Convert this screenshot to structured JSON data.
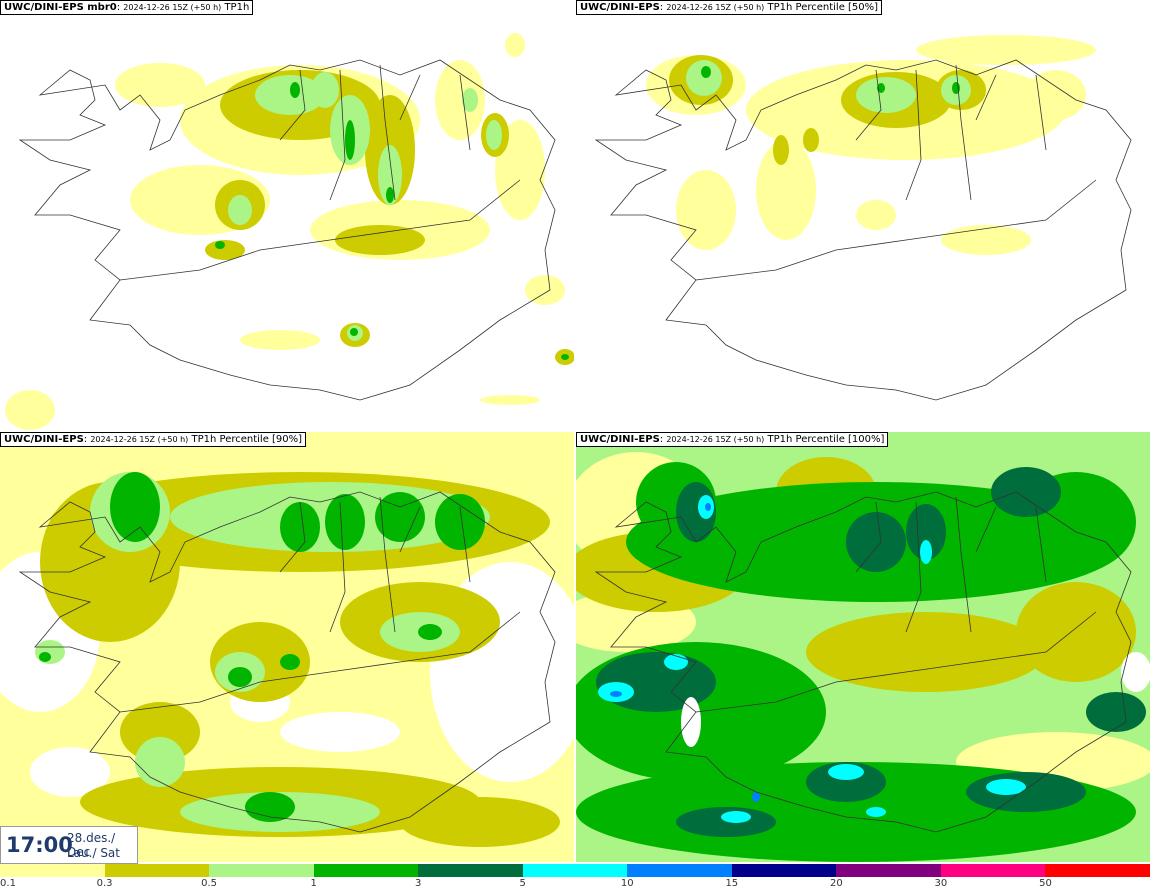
{
  "panels": [
    {
      "model": "UWC/DINI-EPS mbr0",
      "meta": "2024-12-26 15Z (+50 h)",
      "field": "TP1h"
    },
    {
      "model": "UWC/DINI-EPS",
      "meta": "2024-12-26 15Z (+50 h)",
      "field": "TP1h Percentile [50%]"
    },
    {
      "model": "UWC/DINI-EPS",
      "meta": "2024-12-26 15Z (+50 h)",
      "field": "TP1h Percentile [90%]"
    },
    {
      "model": "UWC/DINI-EPS",
      "meta": "2024-12-26 15Z (+50 h)",
      "field": "TP1h Percentile [100%]"
    }
  ],
  "valid_time": {
    "time": "17:00",
    "date": "28.des./ Dec",
    "day": "Lau./ Sat"
  },
  "legend": {
    "ticks": [
      "0.1",
      "0.3",
      "0.5",
      "1",
      "3",
      "5",
      "10",
      "15",
      "20",
      "30",
      "50"
    ],
    "colors": [
      "#ffff9c",
      "#cccc00",
      "#aaf586",
      "#00b400",
      "#006d3c",
      "#00ffff",
      "#0080ff",
      "#00008b",
      "#800080",
      "#ff0080",
      "#ff0000"
    ]
  }
}
